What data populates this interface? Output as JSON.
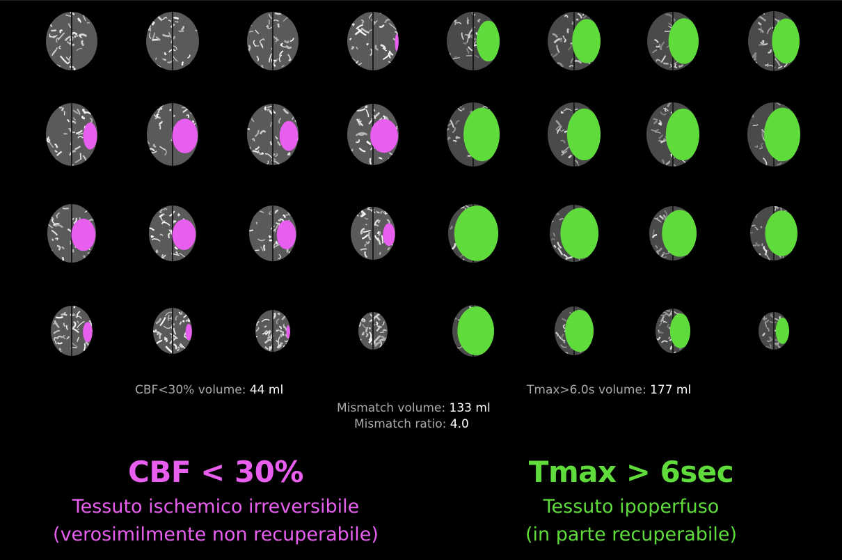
{
  "colors": {
    "cbf": "#e85ff0",
    "tmax": "#5fdc3c",
    "label_gray": "#a9a9a9",
    "value_white": "#ffffff",
    "background": "#000000"
  },
  "grid": {
    "left_series": "cbf-perfusion-slices",
    "right_series": "tmax-perfusion-slices",
    "rows": 4,
    "cols_per_series": 4
  },
  "stats": {
    "cbf_label": "CBF<30% volume:",
    "cbf_value": "44 ml",
    "tmax_label": "Tmax>6.0s volume:",
    "tmax_value": "177 ml",
    "mismatch_volume_label": "Mismatch volume:",
    "mismatch_volume_value": "133 ml",
    "mismatch_ratio_label": "Mismatch ratio:",
    "mismatch_ratio_value": "4.0"
  },
  "captions": {
    "cbf_title": "CBF < 30%",
    "cbf_line1": "Tessuto ischemico irreversibile",
    "cbf_line2": "(verosimilmente non recuperabile)",
    "tmax_title": "Tmax > 6sec",
    "tmax_line1": "Tessuto ipoperfuso",
    "tmax_line2": "(in parte recuperabile)"
  }
}
